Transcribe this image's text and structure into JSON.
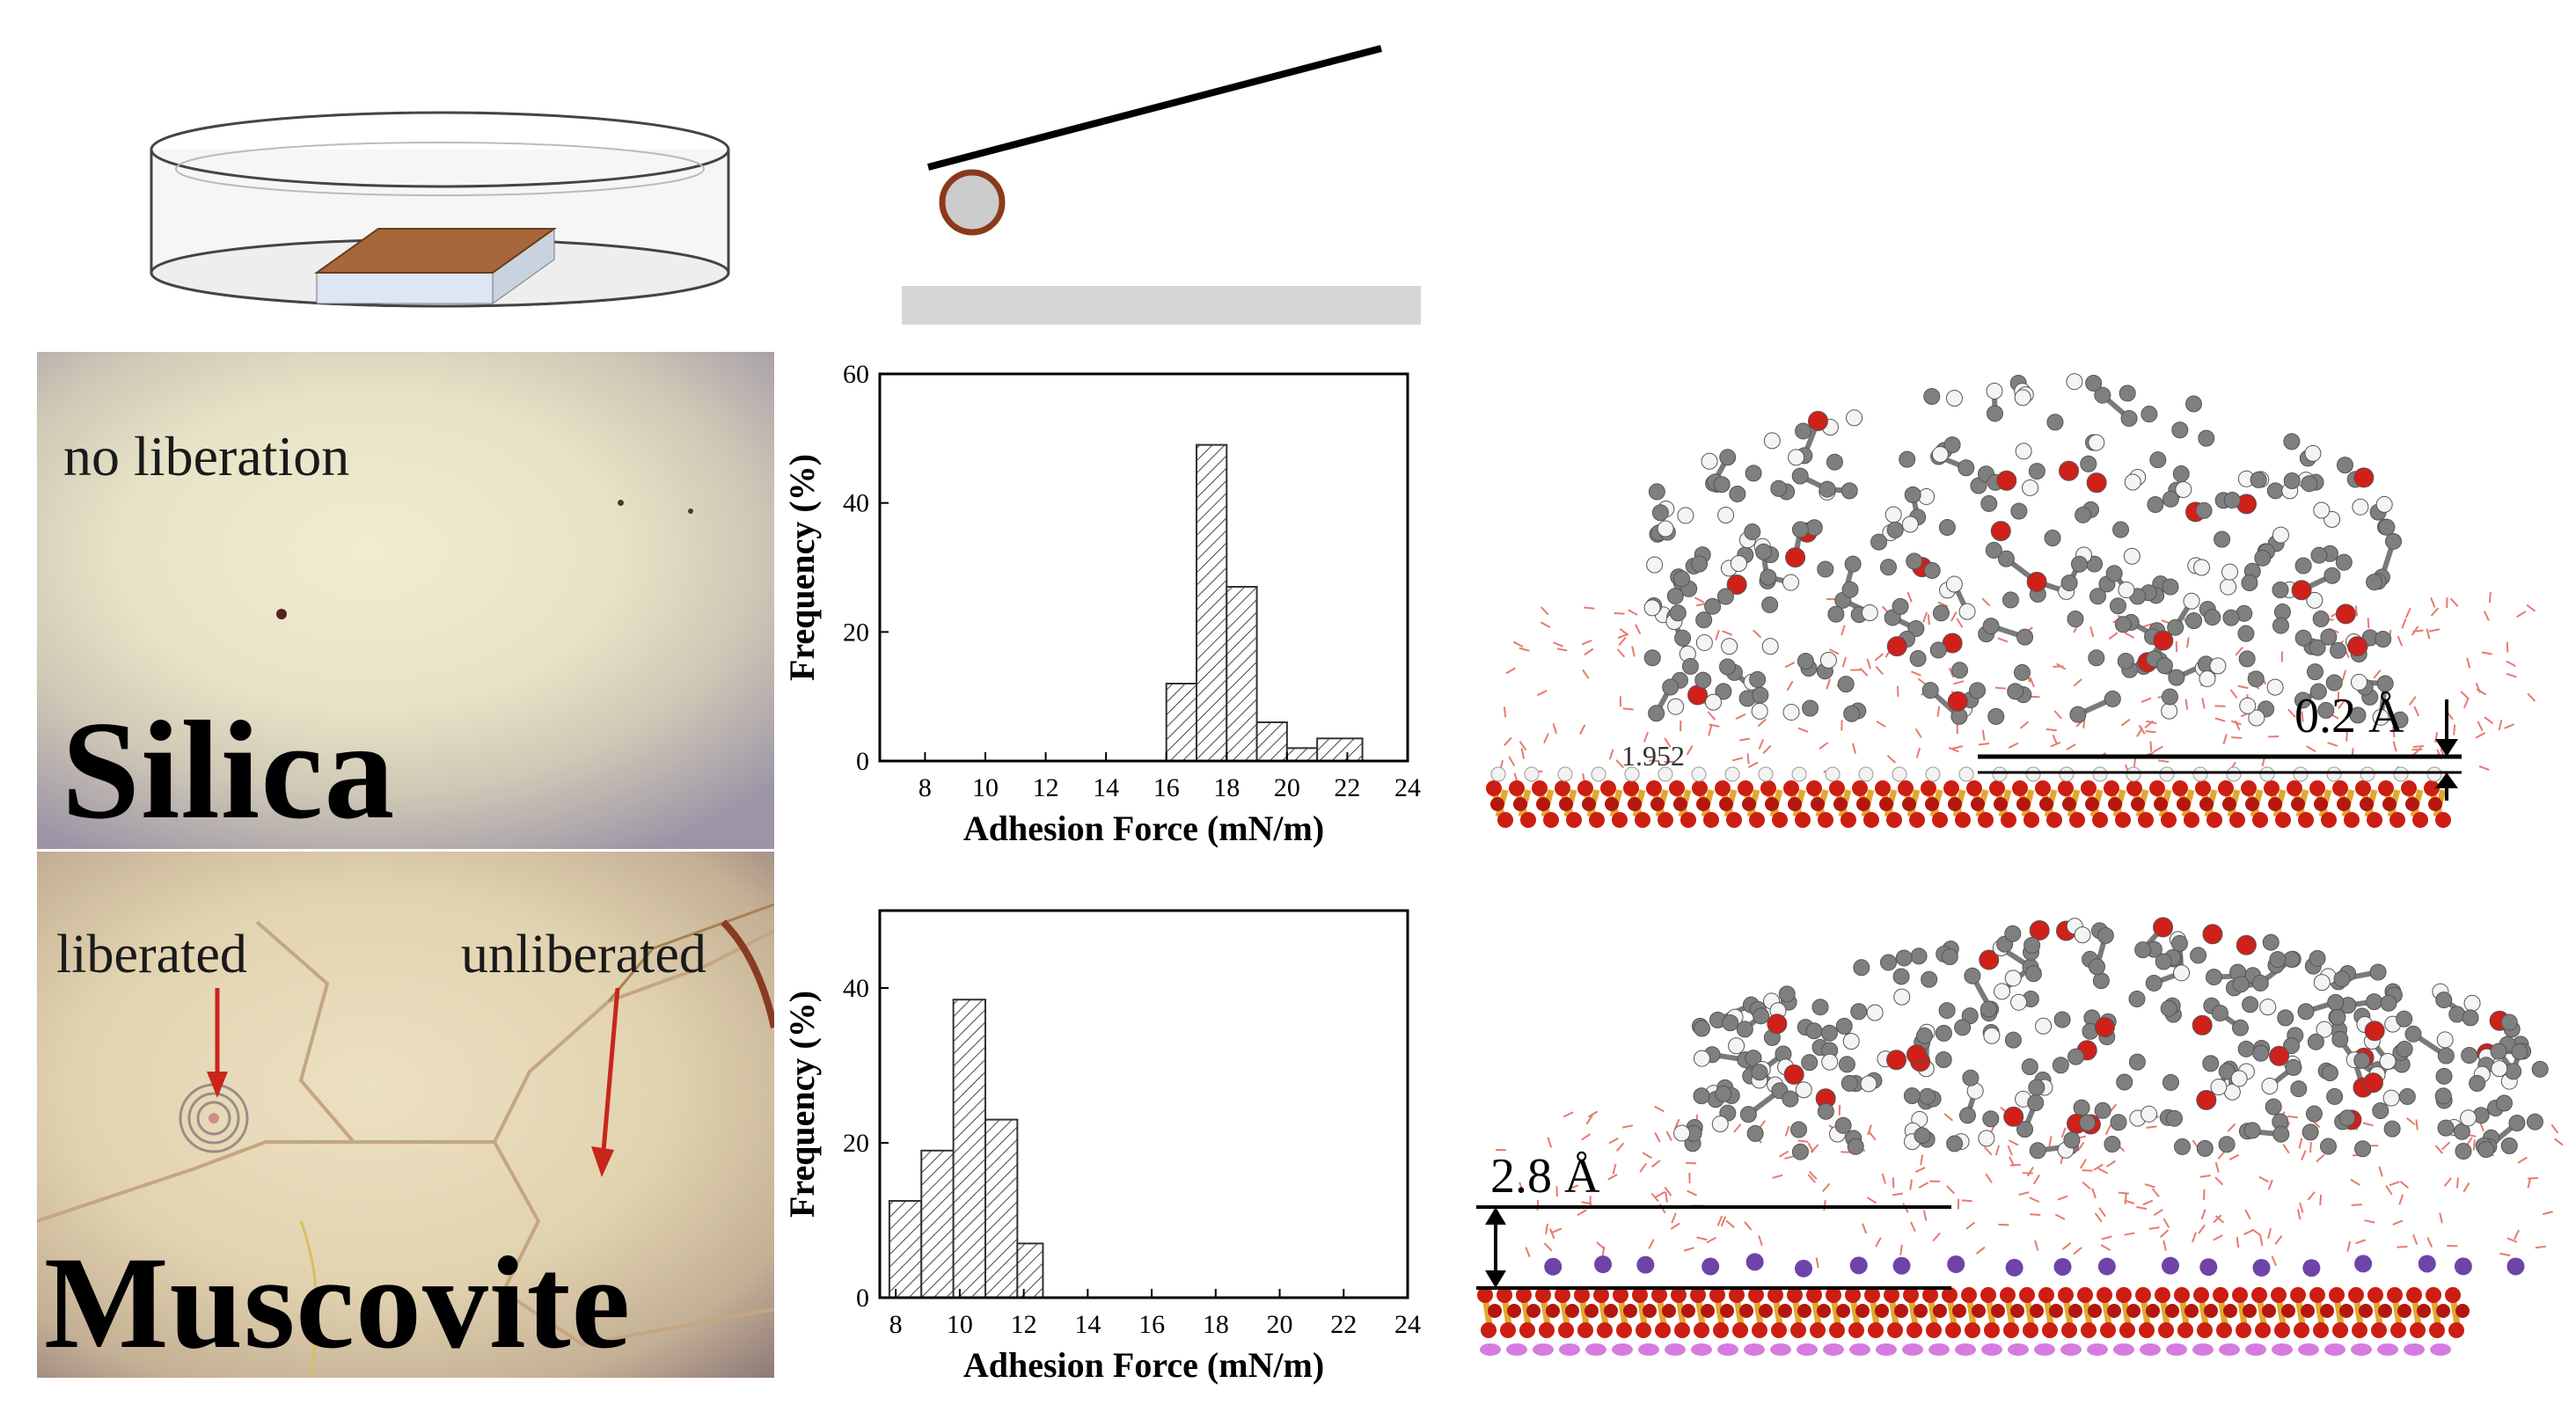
{
  "silica_photo": {
    "annotation": "no liberation",
    "material": "Silica"
  },
  "muscovite_photo": {
    "annotation_left": "liberated",
    "annotation_right": "unliberated",
    "material": "Muscovite"
  },
  "md_top": {
    "distance_label": "0.2 Å",
    "bond_label": "1.952"
  },
  "md_bottom": {
    "distance_label": "2.8 Å"
  },
  "chart_data": [
    {
      "type": "bar",
      "material": "Silica",
      "xlabel": "Adhesion Force (mN/m)",
      "ylabel": "Frequency (%)",
      "xlim": [
        6.5,
        24
      ],
      "ylim": [
        0,
        60
      ],
      "xticks": [
        8,
        10,
        12,
        14,
        16,
        18,
        20,
        22,
        24
      ],
      "yticks": [
        0,
        20,
        40,
        60
      ],
      "bins": [
        {
          "x0": 16,
          "x1": 17,
          "value": 12
        },
        {
          "x0": 17,
          "x1": 18,
          "value": 49
        },
        {
          "x0": 18,
          "x1": 19,
          "value": 27
        },
        {
          "x0": 19,
          "x1": 20,
          "value": 6
        },
        {
          "x0": 20,
          "x1": 21,
          "value": 2
        },
        {
          "x0": 21,
          "x1": 22.5,
          "value": 3.5
        }
      ],
      "hatch": "diagonal",
      "grid": false
    },
    {
      "type": "bar",
      "material": "Muscovite",
      "xlabel": "Adhesion Force (mN/m)",
      "ylabel": "Frequency (%)",
      "xlim": [
        7.5,
        24
      ],
      "ylim": [
        0,
        50
      ],
      "xticks": [
        8,
        10,
        12,
        14,
        16,
        18,
        20,
        22,
        24
      ],
      "yticks": [
        0,
        20,
        40
      ],
      "bins": [
        {
          "x0": 7.8,
          "x1": 8.8,
          "value": 12.5
        },
        {
          "x0": 8.8,
          "x1": 9.8,
          "value": 19
        },
        {
          "x0": 9.8,
          "x1": 10.8,
          "value": 38.5
        },
        {
          "x0": 10.8,
          "x1": 11.8,
          "value": 23
        },
        {
          "x0": 11.8,
          "x1": 12.6,
          "value": 7
        }
      ],
      "hatch": "diagonal",
      "grid": false
    }
  ]
}
